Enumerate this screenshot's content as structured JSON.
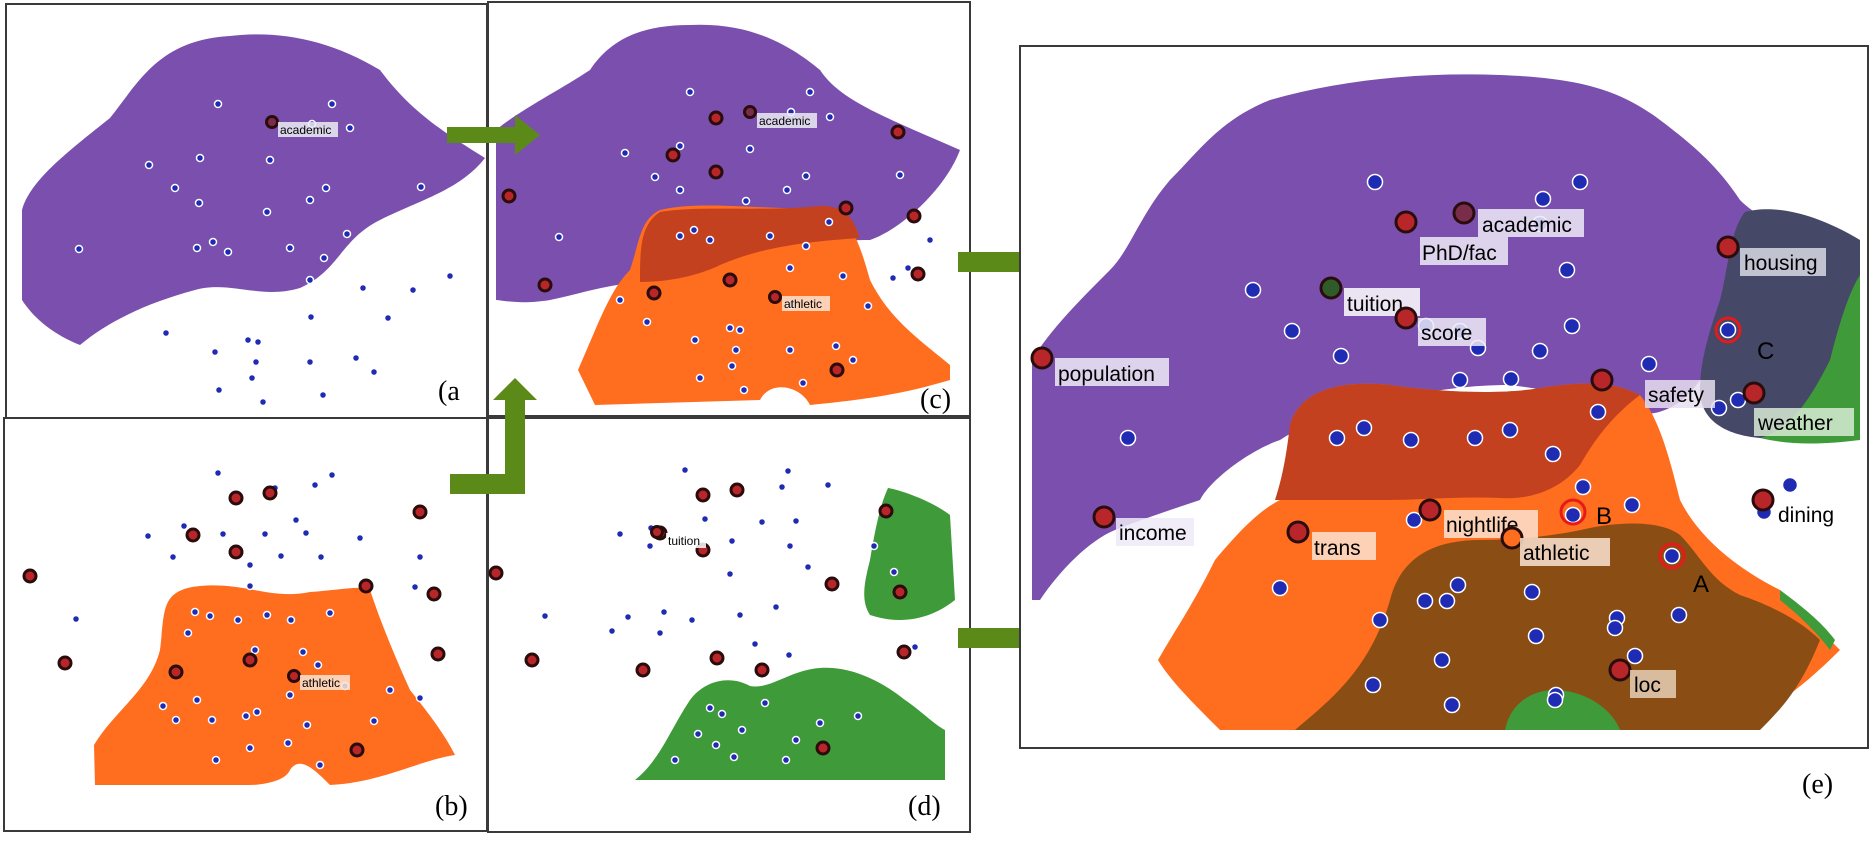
{
  "panels": {
    "a": {
      "caption": "(a",
      "labels": [
        "academic"
      ]
    },
    "b": {
      "caption": "(b)",
      "labels": [
        "athletic"
      ]
    },
    "c": {
      "caption": "(c)",
      "labels": [
        "academic",
        "athletic"
      ]
    },
    "d": {
      "caption": "(d)",
      "labels": [
        "tuition"
      ]
    },
    "e": {
      "caption": "(e)",
      "labels": {
        "academic": "academic",
        "phd_fac": "PhD/fac",
        "housing": "housing",
        "tuition": "tuition",
        "score": "score",
        "population": "population",
        "safety": "safety",
        "weather": "weather",
        "income": "income",
        "nightlife": "nightlife",
        "trans": "trans",
        "athletic": "athletic",
        "dining": "dining",
        "loc": "loc"
      },
      "callouts": {
        "a": "A",
        "b": "B",
        "c": "C"
      }
    }
  },
  "colors": {
    "academic_region": "#7b4fae",
    "athletic_region": "#ff6d1f",
    "overlap_region": "#c4411f",
    "green_region": "#3f9b3a",
    "loc_region": "#8a4e14",
    "housing_region": "#454866",
    "arrow": "#5b8a18",
    "marker": "#b8262a",
    "dot": "#1f2bb2"
  }
}
